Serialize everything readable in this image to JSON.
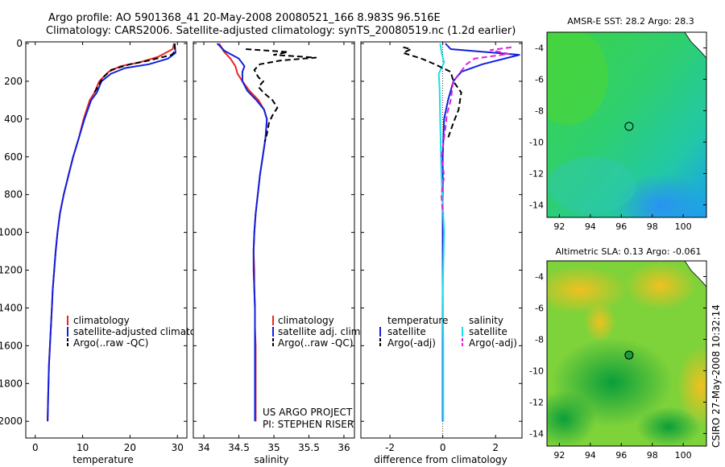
{
  "header": {
    "line1": "Argo profile: AO 5901368_41 20-May-2008 20080521_166 8.983S 96.516E",
    "line2": "Climatology: CARS2006. Satellite-adjusted climatology: synTS_20080519.nc (1.2d earlier)"
  },
  "colors": {
    "clim": "#e8281e",
    "sat": "#1020e0",
    "argo": "#000000",
    "cyan": "#18e0e8",
    "magenta": "#e020d8"
  },
  "chart_data": [
    {
      "id": "temperature",
      "type": "line",
      "xlabel": "temperature",
      "xlim": [
        -2,
        32
      ],
      "ylim": [
        0,
        2080
      ],
      "xticks": [
        0,
        10,
        20,
        30
      ],
      "yticks": [
        0,
        200,
        400,
        600,
        800,
        1000,
        1200,
        1400,
        1600,
        1800,
        2000
      ],
      "series": [
        {
          "name": "climatology",
          "color": "#e8281e",
          "dash": false,
          "points": [
            [
              29.3,
              0
            ],
            [
              29.0,
              30
            ],
            [
              26,
              70
            ],
            [
              22,
              100
            ],
            [
              18,
              120
            ],
            [
              15.5,
              150
            ],
            [
              13.5,
              200
            ],
            [
              12.5,
              260
            ],
            [
              11.5,
              300
            ],
            [
              10.2,
              400
            ],
            [
              9.2,
              500
            ],
            [
              8,
              600
            ],
            [
              7,
              700
            ],
            [
              6,
              800
            ],
            [
              5.2,
              900
            ],
            [
              4.7,
              1000
            ],
            [
              4.3,
              1100
            ],
            [
              4,
              1200
            ],
            [
              3.7,
              1300
            ],
            [
              3.5,
              1400
            ],
            [
              3.3,
              1500
            ],
            [
              3.1,
              1600
            ],
            [
              2.9,
              1700
            ],
            [
              2.8,
              1800
            ],
            [
              2.7,
              1900
            ],
            [
              2.6,
              2000
            ]
          ]
        },
        {
          "name": "satellite-adjusted climatology",
          "color": "#1020e0",
          "dash": false,
          "points": [
            [
              29.4,
              0
            ],
            [
              29.6,
              50
            ],
            [
              28,
              80
            ],
            [
              24,
              110
            ],
            [
              19,
              130
            ],
            [
              16,
              160
            ],
            [
              14,
              200
            ],
            [
              13,
              260
            ],
            [
              11.8,
              300
            ],
            [
              10.4,
              400
            ],
            [
              9.2,
              500
            ],
            [
              8,
              600
            ],
            [
              7,
              700
            ],
            [
              6,
              800
            ],
            [
              5.2,
              900
            ],
            [
              4.7,
              1000
            ],
            [
              4.3,
              1100
            ],
            [
              4,
              1200
            ],
            [
              3.7,
              1300
            ],
            [
              3.5,
              1400
            ],
            [
              3.3,
              1500
            ],
            [
              3.1,
              1600
            ],
            [
              2.9,
              1700
            ],
            [
              2.8,
              1800
            ],
            [
              2.7,
              1900
            ],
            [
              2.6,
              2000
            ]
          ]
        },
        {
          "name": "Argo(..raw -QC)",
          "color": "#000000",
          "dash": true,
          "points": [
            [
              29.4,
              0
            ],
            [
              29.5,
              40
            ],
            [
              28.8,
              60
            ],
            [
              24,
              90
            ],
            [
              20,
              110
            ],
            [
              16,
              140
            ],
            [
              14.3,
              180
            ],
            [
              13.4,
              220
            ],
            [
              12.5,
              260
            ]
          ]
        }
      ],
      "legend": [
        "climatology",
        "satellite-adjusted climatology",
        "Argo(..raw -QC)"
      ]
    },
    {
      "id": "salinity",
      "type": "line",
      "xlabel": "salinity",
      "xlim": [
        33.85,
        36.15
      ],
      "ylim": [
        0,
        2080
      ],
      "xticks": [
        34,
        34.5,
        35,
        35.5,
        36
      ],
      "yticks": [
        0,
        200,
        400,
        600,
        800,
        1000,
        1200,
        1400,
        1600,
        1800,
        2000
      ],
      "series": [
        {
          "name": "climatology",
          "color": "#e8281e",
          "dash": false,
          "points": [
            [
              34.22,
              0
            ],
            [
              34.28,
              40
            ],
            [
              34.38,
              80
            ],
            [
              34.45,
              120
            ],
            [
              34.48,
              160
            ],
            [
              34.55,
              200
            ],
            [
              34.65,
              250
            ],
            [
              34.78,
              300
            ],
            [
              34.86,
              350
            ],
            [
              34.9,
              400
            ],
            [
              34.88,
              500
            ],
            [
              34.84,
              600
            ],
            [
              34.8,
              700
            ],
            [
              34.77,
              800
            ],
            [
              34.74,
              900
            ],
            [
              34.72,
              1000
            ],
            [
              34.71,
              1100
            ],
            [
              34.72,
              1200
            ],
            [
              34.72,
              1300
            ],
            [
              34.73,
              1400
            ],
            [
              34.73,
              1500
            ],
            [
              34.74,
              1600
            ],
            [
              34.74,
              1700
            ],
            [
              34.74,
              1800
            ],
            [
              34.74,
              1900
            ],
            [
              34.74,
              2000
            ]
          ]
        },
        {
          "name": "satellite adj. clim.",
          "color": "#1020e0",
          "dash": false,
          "points": [
            [
              34.19,
              0
            ],
            [
              34.3,
              40
            ],
            [
              34.5,
              80
            ],
            [
              34.58,
              120
            ],
            [
              34.55,
              150
            ],
            [
              34.55,
              200
            ],
            [
              34.62,
              250
            ],
            [
              34.75,
              300
            ],
            [
              34.86,
              350
            ],
            [
              34.9,
              400
            ],
            [
              34.88,
              500
            ],
            [
              34.84,
              600
            ],
            [
              34.8,
              700
            ],
            [
              34.77,
              800
            ],
            [
              34.74,
              900
            ],
            [
              34.72,
              1000
            ],
            [
              34.71,
              1100
            ],
            [
              34.71,
              1200
            ],
            [
              34.72,
              1300
            ],
            [
              34.73,
              1400
            ],
            [
              34.73,
              1500
            ],
            [
              34.73,
              1600
            ],
            [
              34.73,
              1700
            ],
            [
              34.73,
              1800
            ],
            [
              34.73,
              1900
            ],
            [
              34.73,
              2000
            ]
          ]
        },
        {
          "name": "Argo(..raw -QC)",
          "color": "#000000",
          "dash": true,
          "points": [
            [
              34.6,
              30
            ],
            [
              35.2,
              45
            ],
            [
              35.0,
              60
            ],
            [
              35.6,
              75
            ],
            [
              35.1,
              90
            ],
            [
              34.8,
              110
            ],
            [
              34.72,
              140
            ],
            [
              34.78,
              180
            ],
            [
              34.85,
              200
            ],
            [
              34.78,
              230
            ],
            [
              34.85,
              260
            ],
            [
              34.98,
              300
            ],
            [
              35.05,
              340
            ],
            [
              34.98,
              380
            ],
            [
              34.93,
              420
            ],
            [
              34.9,
              480
            ],
            [
              34.87,
              520
            ]
          ]
        }
      ],
      "legend": [
        "climatology",
        "satellite adj. clim.",
        "Argo(..raw -QC)"
      ],
      "credit1": "US ARGO PROJECT",
      "credit2": "PI: STEPHEN RISER"
    },
    {
      "id": "difference",
      "type": "line",
      "xlabel": "difference from climatology",
      "xlim": [
        -3.1,
        3.0
      ],
      "ylim": [
        0,
        2080
      ],
      "xticks": [
        -2,
        0,
        2
      ],
      "yticks": [
        0,
        200,
        400,
        600,
        800,
        1000,
        1200,
        1400,
        1600,
        1800,
        2000
      ],
      "series": [
        {
          "name": "temperature satellite",
          "color": "#1020e0",
          "dash": false,
          "points": [
            [
              0.1,
              0
            ],
            [
              0.3,
              30
            ],
            [
              2.9,
              60
            ],
            [
              1.5,
              110
            ],
            [
              0.7,
              150
            ],
            [
              0.4,
              200
            ],
            [
              0.2,
              300
            ],
            [
              0.05,
              400
            ],
            [
              0,
              600
            ],
            [
              0,
              1000
            ],
            [
              0,
              2000
            ]
          ]
        },
        {
          "name": "salinity satellite",
          "color": "#18e0e8",
          "dash": false,
          "points": [
            [
              -0.1,
              0
            ],
            [
              -0.03,
              60
            ],
            [
              0.05,
              100
            ],
            [
              -0.15,
              160
            ],
            [
              -0.12,
              240
            ],
            [
              -0.1,
              400
            ],
            [
              -0.05,
              700
            ],
            [
              0.05,
              1000
            ],
            [
              0,
              1300
            ],
            [
              0.02,
              1600
            ],
            [
              0.02,
              2000
            ]
          ]
        },
        {
          "name": "temperature Argo(-adj)",
          "color": "#000000",
          "dash": true,
          "points": [
            [
              -1.5,
              20
            ],
            [
              -1.2,
              30
            ],
            [
              -1.5,
              50
            ],
            [
              -0.8,
              80
            ],
            [
              -0.3,
              110
            ],
            [
              0.3,
              150
            ],
            [
              0.4,
              200
            ],
            [
              0.7,
              260
            ],
            [
              0.6,
              350
            ],
            [
              0.4,
              420
            ],
            [
              0.2,
              500
            ]
          ]
        },
        {
          "name": "salinity Argo(-adj)",
          "color": "#e020d8",
          "dash": true,
          "points": [
            [
              2.6,
              20
            ],
            [
              1.8,
              35
            ],
            [
              2.5,
              55
            ],
            [
              1.2,
              80
            ],
            [
              0.9,
              110
            ],
            [
              0.4,
              200
            ],
            [
              0.3,
              300
            ],
            [
              0.15,
              380
            ],
            [
              0.1,
              450
            ],
            [
              -0.05,
              600
            ],
            [
              0.05,
              700
            ],
            [
              -0.05,
              800
            ],
            [
              0,
              900
            ]
          ]
        }
      ],
      "legend_temp_title": "temperature",
      "legend_sal_title": "salinity",
      "legend": [
        "satellite",
        "Argo(-adj)",
        "satellite",
        "Argo(-adj)"
      ]
    },
    {
      "id": "sst_map",
      "type": "heatmap",
      "title": "AMSR-E SST: 28.2 Argo: 28.3",
      "xlim": [
        91.2,
        101.5
      ],
      "ylim": [
        -14.8,
        -3.0
      ],
      "xticks": [
        92,
        94,
        96,
        98,
        100
      ],
      "yticks": [
        -4,
        -6,
        -8,
        -10,
        -12,
        -14
      ],
      "marker": [
        96.5,
        -9.0
      ]
    },
    {
      "id": "sla_map",
      "type": "heatmap",
      "title": "Altimetric SLA: 0.13 Argo: -0.061",
      "xlim": [
        91.2,
        101.5
      ],
      "ylim": [
        -14.8,
        -3.0
      ],
      "xticks": [
        92,
        94,
        96,
        98,
        100
      ],
      "yticks": [
        -4,
        -6,
        -8,
        -10,
        -12,
        -14
      ],
      "marker": [
        96.5,
        -9.0
      ]
    }
  ],
  "footer": {
    "stamp": "CSIRO 27-May-2008 10:32:14"
  }
}
